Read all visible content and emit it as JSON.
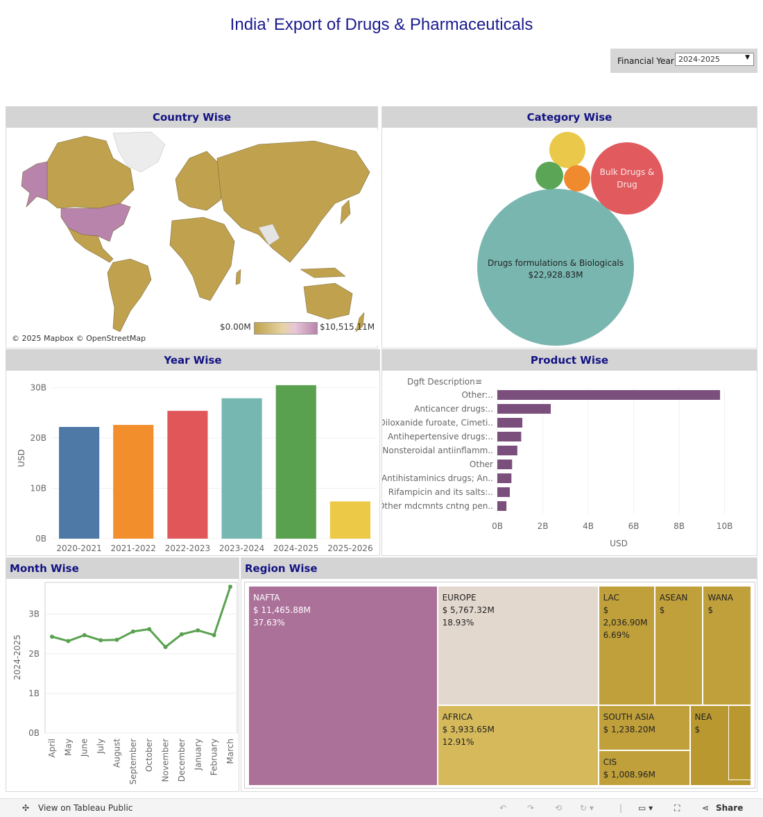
{
  "title": "India’ Export of Drugs & Pharmaceuticals",
  "filter": {
    "label": "Financial Year:",
    "value": "2024-2025"
  },
  "panels": {
    "country": "Country Wise",
    "category": "Category Wise",
    "year": "Year Wise",
    "product": "Product Wise",
    "month": "Month Wise",
    "region": "Region Wise"
  },
  "map": {
    "credit": "© 2025 Mapbox  © OpenStreetMap",
    "legend_min": "$0.00M",
    "legend_max": "$10,515.11M",
    "colors": {
      "land": "#c0a24e",
      "highlight": "#b884ab",
      "ice": "#ececec"
    }
  },
  "category": {
    "bubbles": [
      {
        "name": "Drugs formulations & Biologicals",
        "value_label": "$22,928.83M",
        "color": "#79b6b0"
      },
      {
        "name": "Bulk Drugs & Drug",
        "value_label": "",
        "color": "#e05a5e"
      },
      {
        "name": "",
        "value_label": "",
        "color": "#e9c84a"
      },
      {
        "name": "",
        "value_label": "",
        "color": "#5ba556"
      },
      {
        "name": "",
        "value_label": "",
        "color": "#f08a2e"
      }
    ]
  },
  "chart_data": [
    {
      "type": "bar",
      "title": "Year Wise",
      "categories": [
        "2020-2021",
        "2021-2022",
        "2022-2023",
        "2023-2024",
        "2024-2025",
        "2025-2026"
      ],
      "values": [
        22.2,
        22.6,
        25.4,
        27.9,
        30.5,
        7.4
      ],
      "colors": [
        "#4e79a7",
        "#f28e2b",
        "#e15759",
        "#76b7b2",
        "#59a14f",
        "#edc948"
      ],
      "ylabel": "USD",
      "yticks": [
        "0B",
        "10B",
        "20B",
        "30B"
      ],
      "ylim": [
        0,
        32
      ],
      "unit": "B"
    },
    {
      "type": "bar",
      "orientation": "horizontal",
      "title": "Product Wise",
      "header": "Dgft Description",
      "categories": [
        "Other:..",
        "Anticancer drugs:..",
        "Diloxanide furoate, Cimeti..",
        "Antihepertensive drugs:..",
        "Nonsteroidal antiinflamm..",
        "Other",
        "Antihistaminics drugs; An..",
        "Rifampicin and its salts:..",
        "Other mdcmnts cntng pen.."
      ],
      "values": [
        9.8,
        2.35,
        1.1,
        1.05,
        0.88,
        0.65,
        0.62,
        0.55,
        0.4
      ],
      "color": "#7b4f7c",
      "xlabel": "USD",
      "xticks": [
        "0B",
        "2B",
        "4B",
        "6B",
        "8B",
        "10B"
      ],
      "xlim": [
        0,
        10.5
      ]
    },
    {
      "type": "line",
      "title": "Month Wise",
      "x": [
        "April",
        "May",
        "June",
        "July",
        "August",
        "September",
        "October",
        "November",
        "December",
        "January",
        "February",
        "March"
      ],
      "values": [
        2.43,
        2.32,
        2.47,
        2.34,
        2.35,
        2.56,
        2.62,
        2.17,
        2.49,
        2.59,
        2.47,
        3.69
      ],
      "color": "#59a14f",
      "ylabel": "2024-2025",
      "yticks": [
        "0B",
        "1B",
        "2B",
        "3B"
      ],
      "ylim": [
        0,
        3.8
      ]
    },
    {
      "type": "treemap",
      "title": "Region Wise",
      "items": [
        {
          "name": "NAFTA",
          "value": "$ 11,465.88M",
          "pct": "37.63%",
          "color": "#ab7199",
          "dark": false
        },
        {
          "name": "EUROPE",
          "value": "$ 5,767.32M",
          "pct": "18.93%",
          "color": "#e3d8ce",
          "dark": true
        },
        {
          "name": "AFRICA",
          "value": "$ 3,933.65M",
          "pct": "12.91%",
          "color": "#d5b95b",
          "dark": true
        },
        {
          "name": "LAC",
          "value": "$",
          "value2": "2,036.90M",
          "pct": "6.69%",
          "color": "#c0a03a",
          "dark": true
        },
        {
          "name": "ASEAN",
          "value": "$",
          "color": "#c0a03a",
          "dark": true
        },
        {
          "name": "WANA",
          "value": "$",
          "color": "#c0a03a",
          "dark": true
        },
        {
          "name": "SOUTH ASIA",
          "value": "$ 1,238.20M",
          "color": "#c0a03a",
          "dark": true
        },
        {
          "name": "NEA",
          "value": "$",
          "color": "#b8982f",
          "dark": true
        },
        {
          "name": "CIS",
          "value": "$ 1,008.96M",
          "color": "#c0a03a",
          "dark": true
        }
      ]
    }
  ],
  "footer": {
    "view_label": "View on Tableau Public",
    "share_label": "Share"
  }
}
